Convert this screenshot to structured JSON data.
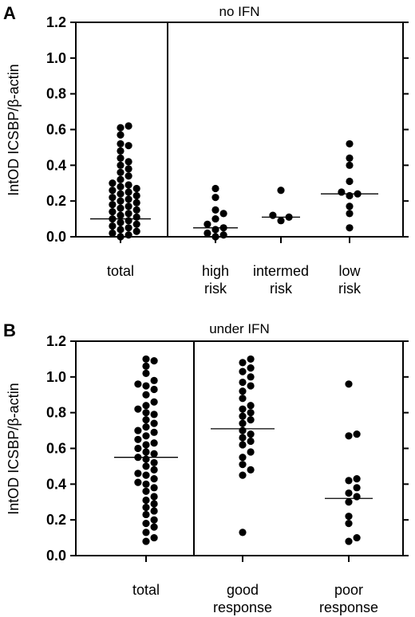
{
  "chart_data": [
    {
      "type": "scatter",
      "panel_label": "A",
      "title": "no IFN",
      "ylabel": "IntOD ICSBP/β-actin",
      "ylim": [
        0,
        1.2
      ],
      "yticks": [
        "0.0",
        "0.2",
        "0.4",
        "0.6",
        "0.8",
        "1.0",
        "1.2"
      ],
      "left_categories": [
        [
          "total"
        ]
      ],
      "right_categories": [
        [
          "high",
          "risk"
        ],
        [
          "intermed",
          "risk"
        ],
        [
          "low",
          "risk"
        ]
      ],
      "groups": [
        {
          "key": "total",
          "median": 0.1,
          "values": [
            0.62,
            0.61,
            0.57,
            0.52,
            0.51,
            0.48,
            0.44,
            0.42,
            0.4,
            0.38,
            0.36,
            0.34,
            0.32,
            0.3,
            0.29,
            0.28,
            0.27,
            0.26,
            0.25,
            0.24,
            0.23,
            0.22,
            0.21,
            0.2,
            0.19,
            0.18,
            0.17,
            0.16,
            0.15,
            0.14,
            0.13,
            0.12,
            0.11,
            0.1,
            0.09,
            0.08,
            0.07,
            0.06,
            0.05,
            0.04,
            0.03,
            0.02,
            0.01,
            0.0
          ]
        },
        {
          "key": "high risk",
          "median": 0.05,
          "values": [
            0.27,
            0.22,
            0.15,
            0.13,
            0.1,
            0.07,
            0.05,
            0.04,
            0.02,
            0.01,
            0.0
          ]
        },
        {
          "key": "intermed risk",
          "median": 0.11,
          "values": [
            0.26,
            0.12,
            0.11,
            0.09
          ]
        },
        {
          "key": "low risk",
          "median": 0.24,
          "values": [
            0.52,
            0.44,
            0.4,
            0.31,
            0.25,
            0.24,
            0.23,
            0.17,
            0.13,
            0.05
          ]
        }
      ]
    },
    {
      "type": "scatter",
      "panel_label": "B",
      "title": "under IFN",
      "ylabel": "IntOD ICSBP/β-actin",
      "ylim": [
        0,
        1.2
      ],
      "yticks": [
        "0.0",
        "0.2",
        "0.4",
        "0.6",
        "0.8",
        "1.0",
        "1.2"
      ],
      "left_categories": [
        [
          "total"
        ]
      ],
      "right_categories": [
        [
          "good",
          "response"
        ],
        [
          "poor",
          "response"
        ]
      ],
      "groups": [
        {
          "key": "total",
          "median": 0.55,
          "values": [
            1.1,
            1.09,
            1.06,
            1.02,
            0.98,
            0.96,
            0.95,
            0.93,
            0.9,
            0.86,
            0.84,
            0.82,
            0.8,
            0.79,
            0.76,
            0.74,
            0.72,
            0.7,
            0.69,
            0.67,
            0.65,
            0.63,
            0.62,
            0.6,
            0.58,
            0.57,
            0.55,
            0.54,
            0.52,
            0.5,
            0.48,
            0.46,
            0.45,
            0.43,
            0.41,
            0.4,
            0.38,
            0.36,
            0.33,
            0.31,
            0.29,
            0.27,
            0.25,
            0.23,
            0.2,
            0.18,
            0.16,
            0.13,
            0.1,
            0.08
          ]
        },
        {
          "key": "good response",
          "median": 0.71,
          "values": [
            1.1,
            1.08,
            1.05,
            1.03,
            1.0,
            0.97,
            0.95,
            0.92,
            0.88,
            0.84,
            0.82,
            0.8,
            0.78,
            0.76,
            0.74,
            0.7,
            0.68,
            0.66,
            0.64,
            0.62,
            0.58,
            0.55,
            0.51,
            0.48,
            0.45,
            0.13
          ]
        },
        {
          "key": "poor response",
          "median": 0.32,
          "values": [
            0.96,
            0.68,
            0.67,
            0.43,
            0.42,
            0.38,
            0.35,
            0.33,
            0.3,
            0.22,
            0.18,
            0.1,
            0.08
          ]
        }
      ]
    }
  ]
}
